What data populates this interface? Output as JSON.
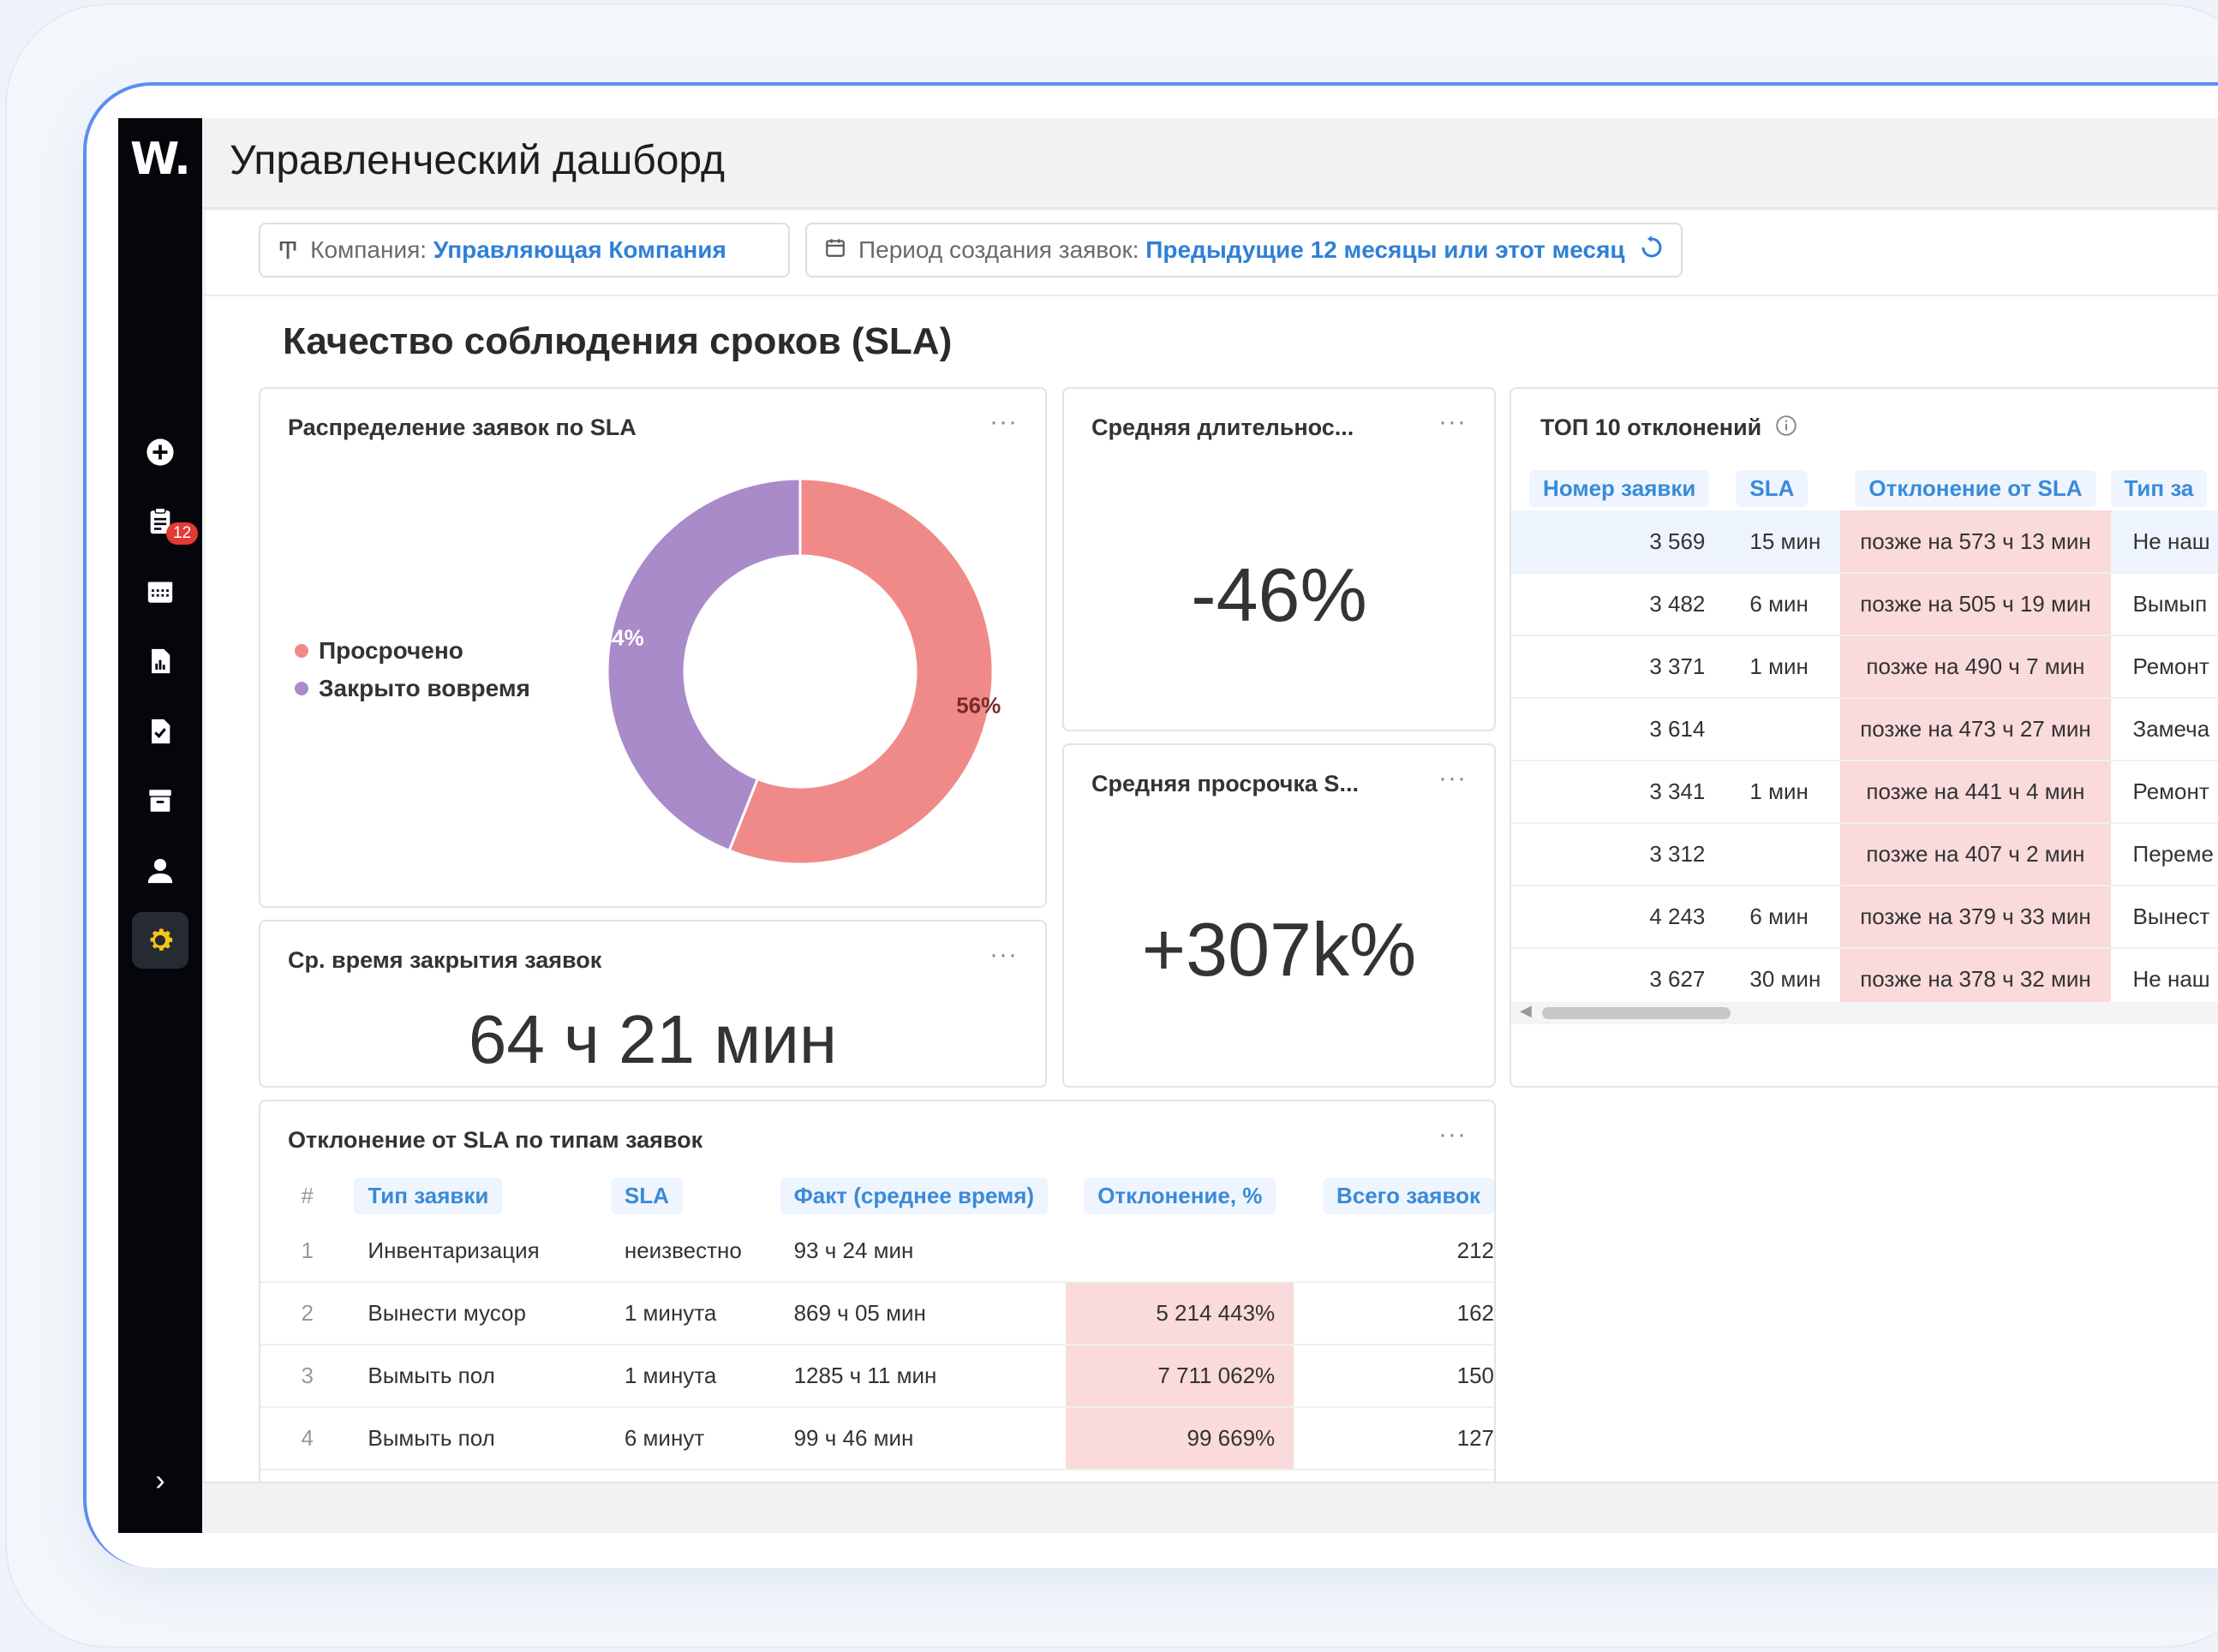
{
  "app": {
    "logo": "W.",
    "title": "Управленческий дашборд"
  },
  "sidebar": {
    "badge_count": "12",
    "icons": [
      "plus-circle-icon",
      "clipboard-icon",
      "calendar-icon",
      "report-icon",
      "checklist-icon",
      "archive-icon",
      "user-icon",
      "gear-icon"
    ],
    "expand_icon": "›"
  },
  "filters": {
    "company_label": "Компания:",
    "company_value": "Управляющая Компания",
    "period_label": "Период создания заявок:",
    "period_value": "Предыдущие 12 месяцы или этот месяц"
  },
  "section_title": "Качество соблюдения сроков (SLA)",
  "donut_panel": {
    "title": "Распределение заявок по SLA",
    "legend": [
      {
        "label": "Просрочено",
        "color": "#f08a88"
      },
      {
        "label": "Закрыто вовремя",
        "color": "#a98bc9"
      }
    ]
  },
  "chart_data": {
    "type": "pie",
    "categories": [
      "Просрочено",
      "Закрыто вовремя"
    ],
    "values": [
      56,
      44
    ],
    "labels": [
      "56%",
      "44%"
    ],
    "colors": [
      "#f08a88",
      "#a98bc9"
    ],
    "title": "Распределение заявок по SLA"
  },
  "avg_duration": {
    "title": "Средняя длительнос...",
    "value": "-46%"
  },
  "avg_overdue": {
    "title": "Средняя просрочка S...",
    "value": "+307k%"
  },
  "avg_close": {
    "title": "Ср. время закрытия заявок",
    "value": "64 ч 21 мин"
  },
  "top10": {
    "title": "ТОП 10 отклонений",
    "headers": [
      "Номер заявки",
      "SLA",
      "Отклонение от SLA",
      "Тип за"
    ],
    "rows": [
      {
        "num": "3 569",
        "sla": "15 мин",
        "dev": "позже на 573 ч 13 мин",
        "type": "Не наш"
      },
      {
        "num": "3 482",
        "sla": "6 мин",
        "dev": "позже на 505 ч 19 мин",
        "type": "Вымып"
      },
      {
        "num": "3 371",
        "sla": "1 мин",
        "dev": "позже на 490 ч 7 мин",
        "type": "Ремонт"
      },
      {
        "num": "3 614",
        "sla": "",
        "dev": "позже на 473 ч 27 мин",
        "type": "Замеча"
      },
      {
        "num": "3 341",
        "sla": "1 мин",
        "dev": "позже на 441 ч 4 мин",
        "type": "Ремонт"
      },
      {
        "num": "3 312",
        "sla": "",
        "dev": "позже на 407 ч 2 мин",
        "type": "Переме"
      },
      {
        "num": "4 243",
        "sla": "6 мин",
        "dev": "позже на 379 ч 33 мин",
        "type": "Вынест"
      },
      {
        "num": "3 627",
        "sla": "30 мин",
        "dev": "позже на 378 ч 32 мин",
        "type": "Не наш"
      }
    ]
  },
  "bytype": {
    "title": "Отклонение от SLA по типам заявок",
    "headers": [
      "#",
      "Тип заявки",
      "SLA",
      "Факт (среднее время)",
      "Отклонение, %",
      "Всего заявок"
    ],
    "rows": [
      {
        "n": "1",
        "type": "Инвентаризация",
        "sla": "неизвестно",
        "fact": "93 ч 24 мин",
        "dev": "",
        "total": "212"
      },
      {
        "n": "2",
        "type": "Вынести мусор",
        "sla": "1 минута",
        "fact": "869 ч 05 мин",
        "dev": "5 214 443%",
        "total": "162"
      },
      {
        "n": "3",
        "type": "Вымыть пол",
        "sla": "1 минута",
        "fact": "1285 ч 11 мин",
        "dev": "7 711 062%",
        "total": "150"
      },
      {
        "n": "4",
        "type": "Вымыть пол",
        "sla": "6 минут",
        "fact": "99 ч 46 мин",
        "dev": "99 669%",
        "total": "127"
      }
    ]
  },
  "more_label": "···"
}
